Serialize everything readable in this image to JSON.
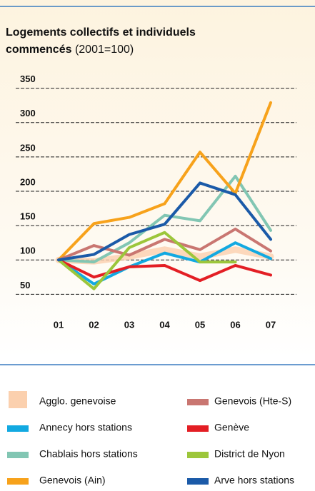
{
  "chart_data": {
    "type": "line",
    "title": "Logements collectifs et individuels commencés",
    "subtitle": "(2001=100)",
    "categories": [
      "01",
      "02",
      "03",
      "04",
      "05",
      "06",
      "07"
    ],
    "ylim": [
      40,
      360
    ],
    "yticks": [
      50,
      100,
      150,
      200,
      250,
      300,
      350
    ],
    "grid": true,
    "legend": "bottom",
    "series": [
      {
        "name": "Agglo. genevoise",
        "color": "#fbd0ae",
        "values": [
          100,
          98,
          105,
          115,
          105,
          115,
          105
        ]
      },
      {
        "name": "Annecy hors stations",
        "color": "#12a9e1",
        "values": [
          100,
          65,
          90,
          110,
          97,
          125,
          102
        ]
      },
      {
        "name": "Chablais hors stations",
        "color": "#82c6b3",
        "values": [
          100,
          97,
          125,
          165,
          157,
          222,
          143
        ]
      },
      {
        "name": "Genevois (Ain)",
        "color": "#f7a21b",
        "values": [
          100,
          153,
          162,
          182,
          257,
          197,
          329
        ]
      },
      {
        "name": "Genevois (Hte-S)",
        "color": "#c97671",
        "values": [
          100,
          121,
          107,
          130,
          115,
          145,
          113
        ]
      },
      {
        "name": "Genève",
        "color": "#e31e24",
        "values": [
          100,
          75,
          90,
          92,
          70,
          92,
          78
        ]
      },
      {
        "name": "District de Nyon",
        "color": "#9cc63b",
        "values": [
          100,
          58,
          118,
          140,
          97,
          97,
          null
        ]
      },
      {
        "name": "Arve hors stations",
        "color": "#1b5aa8",
        "values": [
          100,
          108,
          137,
          152,
          212,
          195,
          130
        ]
      }
    ]
  }
}
